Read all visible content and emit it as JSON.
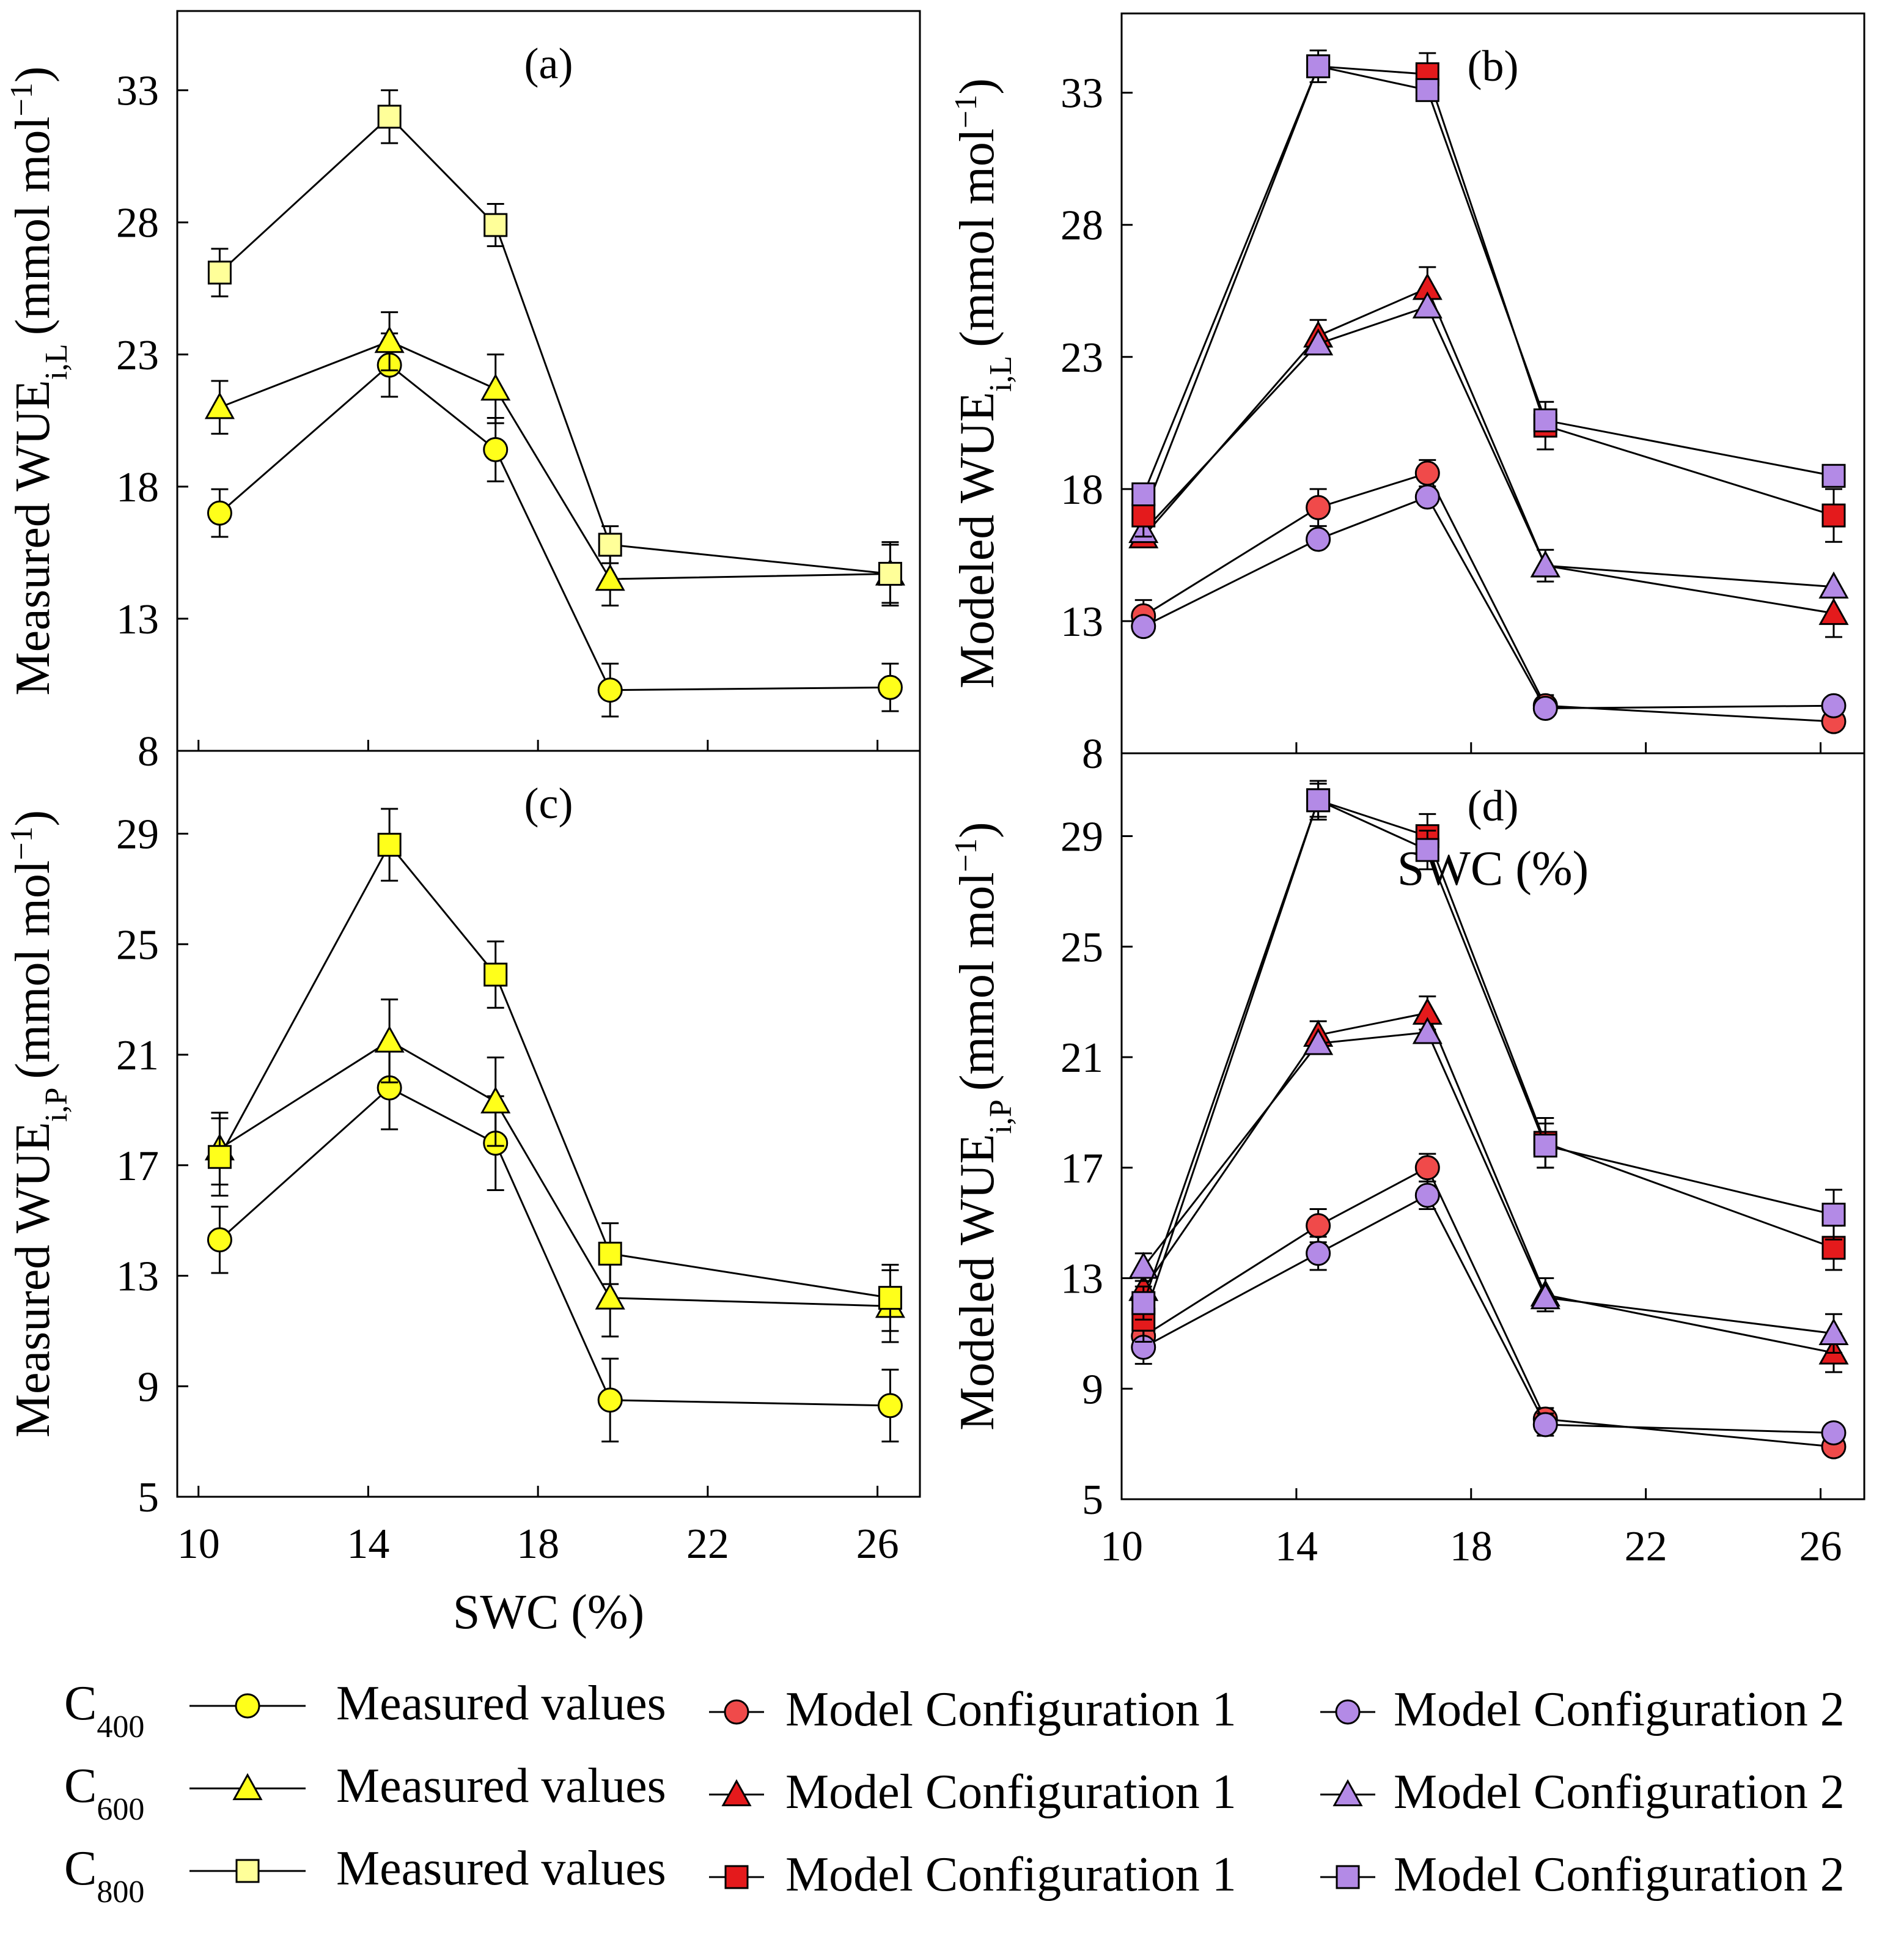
{
  "colors": {
    "yellow": "#ffff1a",
    "light_yellow": "#ffff99",
    "red": "#e41a1c",
    "pink_red": "#f04a4a",
    "purple": "#b38ae6",
    "black": "#000000"
  },
  "legend": {
    "rows": [
      {
        "c_main": "C",
        "c_sub": "400",
        "marker": "circle",
        "measured": "Measured values",
        "m1": "Model Configuration 1",
        "m2": "Model Configuration 2"
      },
      {
        "c_main": "C",
        "c_sub": "600",
        "marker": "triangle",
        "measured": "Measured values",
        "m1": "Model Configuration 1",
        "m2": "Model Configuration 2"
      },
      {
        "c_main": "C",
        "c_sub": "800",
        "marker": "square",
        "measured": "Measured values",
        "m1": "Model Configuration 1",
        "m2": "Model Configuration 2"
      }
    ]
  },
  "chart_data": [
    {
      "panel": "(a)",
      "type": "line",
      "ylabel_main": "Measured WUE",
      "ylabel_sub": "i,L",
      "ylabel_unit": "(mmol  mol",
      "ylabel_sup": "−1",
      "ylabel_close": ")",
      "xlabel": "",
      "x": [
        10.5,
        14.5,
        17.0,
        19.7,
        26.3
      ],
      "xlim": [
        9.5,
        27.0
      ],
      "ylim": [
        8,
        36
      ],
      "xticks": [
        10,
        14,
        18,
        22,
        26
      ],
      "yticks": [
        8,
        13,
        18,
        23,
        28,
        33
      ],
      "series": [
        {
          "name": "C400 Measured values",
          "marker": "circle",
          "fill": "yellow",
          "values": [
            17.0,
            22.6,
            19.4,
            10.3,
            10.4
          ],
          "err": [
            0.9,
            1.2,
            1.2,
            1.0,
            0.9
          ]
        },
        {
          "name": "C600 Measured values",
          "marker": "triangle",
          "fill": "yellow",
          "values": [
            21.0,
            23.5,
            21.7,
            14.5,
            14.7
          ],
          "err": [
            1.0,
            1.1,
            1.3,
            1.0,
            1.1
          ]
        },
        {
          "name": "C800 Measured values",
          "marker": "square",
          "fill": "light_yellow",
          "values": [
            26.1,
            32.0,
            27.9,
            15.8,
            14.7
          ],
          "err": [
            0.9,
            1.0,
            0.8,
            0.7,
            1.2
          ]
        }
      ]
    },
    {
      "panel": "(b)",
      "type": "line",
      "ylabel_main": "Modeled WUE",
      "ylabel_sub": "i,L",
      "ylabel_unit": "(mmol  mol",
      "ylabel_sup": "−1",
      "ylabel_close": ")",
      "xlabel": "SWC (%)",
      "x": [
        10.5,
        14.5,
        17.0,
        19.7,
        26.3
      ],
      "xlim": [
        10.0,
        27.0
      ],
      "ylim": [
        8,
        36
      ],
      "xticks": [
        10,
        14,
        18,
        22,
        26
      ],
      "yticks": [
        8,
        13,
        18,
        23,
        28,
        33
      ],
      "series": [
        {
          "name": "C400 Model Configuration 1",
          "marker": "circle",
          "fill": "pink_red",
          "values": [
            13.2,
            17.3,
            18.6,
            9.8,
            9.2
          ],
          "err": [
            0.6,
            0.7,
            0.5,
            0.4,
            0.3
          ]
        },
        {
          "name": "C400 Model Configuration 2",
          "marker": "circle",
          "fill": "purple",
          "values": [
            12.8,
            16.1,
            17.7,
            9.7,
            9.8
          ],
          "err": [
            0.0,
            0.0,
            0.0,
            0.0,
            0.0
          ]
        },
        {
          "name": "C600 Model Configuration 1",
          "marker": "triangle",
          "fill": "red",
          "values": [
            16.2,
            23.8,
            25.6,
            15.1,
            13.3
          ],
          "err": [
            0.4,
            0.6,
            0.8,
            0.6,
            0.9
          ]
        },
        {
          "name": "C600 Model Configuration 2",
          "marker": "triangle",
          "fill": "purple",
          "values": [
            16.4,
            23.5,
            24.9,
            15.1,
            14.3
          ],
          "err": [
            0.0,
            0.0,
            0.0,
            0.0,
            0.0
          ]
        },
        {
          "name": "C800 Model Configuration 1",
          "marker": "square",
          "fill": "red",
          "values": [
            17.0,
            34.0,
            33.7,
            20.4,
            17.0
          ],
          "err": [
            0.8,
            0.6,
            0.8,
            0.9,
            1.0
          ]
        },
        {
          "name": "C800 Model Configuration 2",
          "marker": "square",
          "fill": "purple",
          "values": [
            17.8,
            34.0,
            33.1,
            20.6,
            18.5
          ],
          "err": [
            0.0,
            0.0,
            0.0,
            0.0,
            0.0
          ]
        }
      ]
    },
    {
      "panel": "(c)",
      "type": "line",
      "ylabel_main": "Measured WUE",
      "ylabel_sub": "i,P",
      "ylabel_unit": "(mmol  mol",
      "ylabel_sup": "−1",
      "ylabel_close": ")",
      "xlabel": "SWC (%)",
      "x": [
        10.5,
        14.5,
        17.0,
        19.7,
        26.3
      ],
      "xlim": [
        9.5,
        27.0
      ],
      "ylim": [
        5,
        32
      ],
      "xticks": [
        10,
        14,
        18,
        22,
        26
      ],
      "yticks": [
        5,
        9,
        13,
        17,
        21,
        25,
        29
      ],
      "series": [
        {
          "name": "C400 Measured values",
          "marker": "circle",
          "fill": "yellow",
          "values": [
            14.3,
            19.8,
            17.8,
            8.5,
            8.3
          ],
          "err": [
            1.2,
            1.5,
            1.7,
            1.5,
            1.3
          ]
        },
        {
          "name": "C600 Measured values",
          "marker": "triangle",
          "fill": "yellow",
          "values": [
            17.6,
            21.5,
            19.3,
            12.2,
            11.9
          ],
          "err": [
            1.3,
            1.5,
            1.6,
            1.4,
            1.3
          ]
        },
        {
          "name": "C800 Measured values",
          "marker": "square",
          "fill": "yellow",
          "values": [
            17.3,
            28.6,
            23.9,
            13.8,
            12.2
          ],
          "err": [
            1.4,
            1.3,
            1.2,
            1.1,
            1.2
          ]
        }
      ]
    },
    {
      "panel": "(d)",
      "type": "line",
      "ylabel_main": "Modeled WUE",
      "ylabel_sub": "i,P",
      "ylabel_unit": "(mmol  mol",
      "ylabel_sup": "−1",
      "ylabel_close": ")",
      "xlabel": "",
      "x": [
        10.5,
        14.5,
        17.0,
        19.7,
        26.3
      ],
      "xlim": [
        10.0,
        27.0
      ],
      "ylim": [
        5,
        32
      ],
      "xticks": [
        10,
        14,
        18,
        22,
        26
      ],
      "yticks": [
        5,
        9,
        13,
        17,
        21,
        25,
        29
      ],
      "series": [
        {
          "name": "C400 Model Configuration 1",
          "marker": "circle",
          "fill": "pink_red",
          "values": [
            10.9,
            14.9,
            17.0,
            7.9,
            6.9
          ],
          "err": [
            0.6,
            0.6,
            0.5,
            0.4,
            0.3
          ]
        },
        {
          "name": "C400 Model Configuration 2",
          "marker": "circle",
          "fill": "purple",
          "values": [
            10.5,
            13.9,
            16.0,
            7.7,
            7.4
          ],
          "err": [
            0.6,
            0.6,
            0.5,
            0.4,
            0.0
          ]
        },
        {
          "name": "C600 Model Configuration 1",
          "marker": "triangle",
          "fill": "red",
          "values": [
            12.6,
            21.8,
            22.6,
            12.4,
            10.3
          ],
          "err": [
            0.6,
            0.5,
            0.6,
            0.6,
            0.7
          ]
        },
        {
          "name": "C600 Model Configuration 2",
          "marker": "triangle",
          "fill": "purple",
          "values": [
            13.4,
            21.5,
            21.9,
            12.3,
            11.0
          ],
          "err": [
            0.5,
            0.0,
            0.0,
            0.0,
            0.7
          ]
        },
        {
          "name": "C800 Model Configuration 1",
          "marker": "square",
          "fill": "red",
          "values": [
            11.5,
            30.3,
            29.0,
            17.9,
            14.1
          ],
          "err": [
            0.8,
            0.7,
            0.8,
            0.9,
            0.8
          ]
        },
        {
          "name": "C800 Model Configuration 2",
          "marker": "square",
          "fill": "purple",
          "values": [
            12.1,
            30.3,
            28.5,
            17.8,
            15.3
          ],
          "err": [
            0.6,
            0.6,
            0.7,
            0.8,
            0.9
          ]
        }
      ]
    }
  ]
}
